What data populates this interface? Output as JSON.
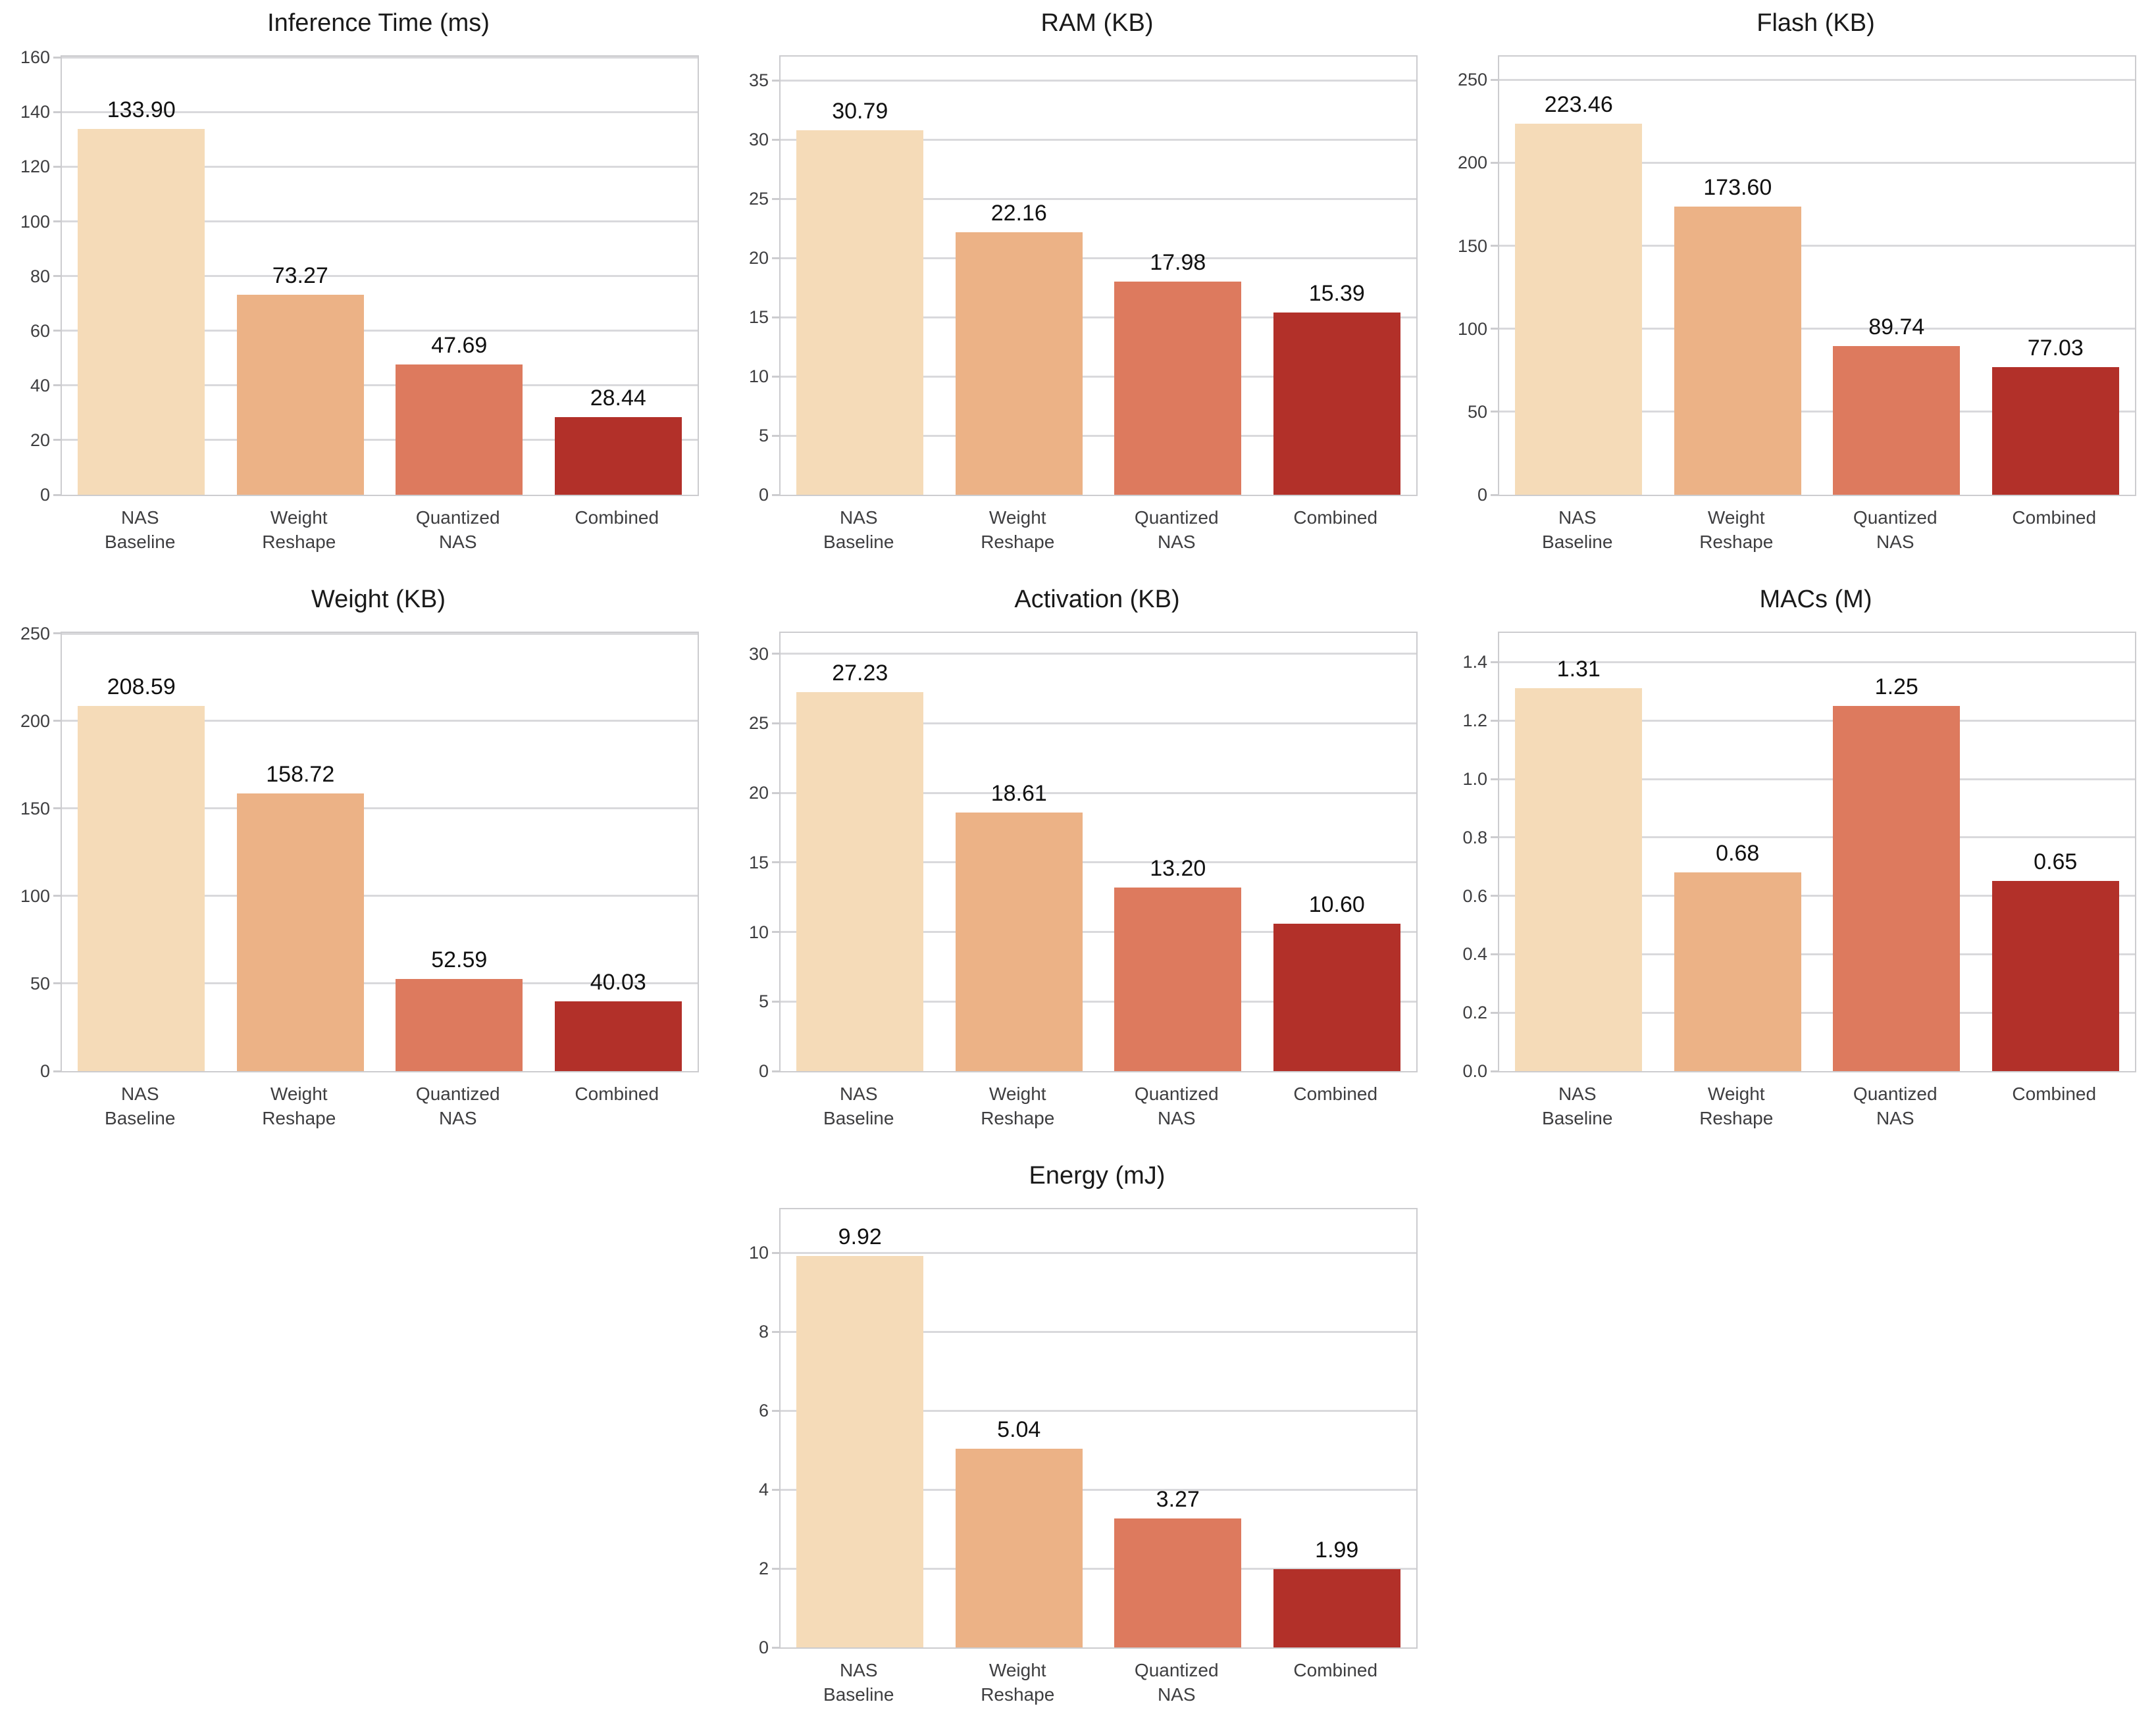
{
  "figure": {
    "background": "#ffffff",
    "bar_colors": [
      "#f5dbb8",
      "#ecb286",
      "#dd7a5e",
      "#b23029"
    ],
    "grid_color": "#d9d9dc",
    "spine_color": "#cccccf",
    "tick_label_color": "#3e3e40",
    "value_label_color": "#111111",
    "title_color": "#1a1a1a",
    "categories": [
      "NAS Baseline",
      "Weight Reshape",
      "Quantized NAS",
      "Combined"
    ],
    "category_lines": [
      [
        "NAS",
        "Baseline"
      ],
      [
        "Weight",
        "Reshape"
      ],
      [
        "Quantized",
        "NAS"
      ],
      [
        "Combined"
      ]
    ]
  },
  "chart_data": [
    {
      "type": "bar",
      "slug": "inference-time",
      "title": "Inference Time (ms)",
      "categories": [
        "NAS Baseline",
        "Weight Reshape",
        "Quantized NAS",
        "Combined"
      ],
      "values": [
        133.9,
        73.27,
        47.69,
        28.44
      ],
      "value_labels": [
        "133.90",
        "73.27",
        "47.69",
        "28.44"
      ],
      "yticks": [
        0,
        20,
        40,
        60,
        80,
        100,
        120,
        140,
        160
      ],
      "ytick_labels": [
        "0",
        "20",
        "40",
        "60",
        "80",
        "100",
        "120",
        "140",
        "160"
      ],
      "ylim": [
        0,
        160.3
      ],
      "grid": true,
      "legend": false,
      "position": {
        "row": 1,
        "col": 1
      }
    },
    {
      "type": "bar",
      "slug": "ram",
      "title": "RAM (KB)",
      "categories": [
        "NAS Baseline",
        "Weight Reshape",
        "Quantized NAS",
        "Combined"
      ],
      "values": [
        30.79,
        22.16,
        17.98,
        15.39
      ],
      "value_labels": [
        "30.79",
        "22.16",
        "17.98",
        "15.39"
      ],
      "yticks": [
        0,
        5,
        10,
        15,
        20,
        25,
        30,
        35
      ],
      "ytick_labels": [
        "0",
        "5",
        "10",
        "15",
        "20",
        "25",
        "30",
        "35"
      ],
      "ylim": [
        0,
        37.0
      ],
      "grid": true,
      "legend": false,
      "position": {
        "row": 1,
        "col": 2
      }
    },
    {
      "type": "bar",
      "slug": "flash",
      "title": "Flash (KB)",
      "categories": [
        "NAS Baseline",
        "Weight Reshape",
        "Quantized NAS",
        "Combined"
      ],
      "values": [
        223.46,
        173.6,
        89.74,
        77.03
      ],
      "value_labels": [
        "223.46",
        "173.60",
        "89.74",
        "77.03"
      ],
      "yticks": [
        0,
        50,
        100,
        150,
        200,
        250
      ],
      "ytick_labels": [
        "0",
        "50",
        "100",
        "150",
        "200",
        "250"
      ],
      "ylim": [
        0,
        264
      ],
      "grid": true,
      "legend": false,
      "position": {
        "row": 1,
        "col": 3
      }
    },
    {
      "type": "bar",
      "slug": "weight",
      "title": "Weight (KB)",
      "categories": [
        "NAS Baseline",
        "Weight Reshape",
        "Quantized NAS",
        "Combined"
      ],
      "values": [
        208.59,
        158.72,
        52.59,
        40.03
      ],
      "value_labels": [
        "208.59",
        "158.72",
        "52.59",
        "40.03"
      ],
      "yticks": [
        0,
        50,
        100,
        150,
        200,
        250
      ],
      "ytick_labels": [
        "0",
        "50",
        "100",
        "150",
        "200",
        "250"
      ],
      "ylim": [
        0,
        250.3
      ],
      "grid": true,
      "legend": false,
      "position": {
        "row": 2,
        "col": 1
      }
    },
    {
      "type": "bar",
      "slug": "activation",
      "title": "Activation (KB)",
      "categories": [
        "NAS Baseline",
        "Weight Reshape",
        "Quantized NAS",
        "Combined"
      ],
      "values": [
        27.23,
        18.61,
        13.2,
        10.6
      ],
      "value_labels": [
        "27.23",
        "18.61",
        "13.20",
        "10.60"
      ],
      "yticks": [
        0,
        5,
        10,
        15,
        20,
        25,
        30
      ],
      "ytick_labels": [
        "0",
        "5",
        "10",
        "15",
        "20",
        "25",
        "30"
      ],
      "ylim": [
        0,
        31.5
      ],
      "grid": true,
      "legend": false,
      "position": {
        "row": 2,
        "col": 2
      }
    },
    {
      "type": "bar",
      "slug": "macs",
      "title": "MACs (M)",
      "categories": [
        "NAS Baseline",
        "Weight Reshape",
        "Quantized NAS",
        "Combined"
      ],
      "values": [
        1.31,
        0.68,
        1.25,
        0.65
      ],
      "value_labels": [
        "1.31",
        "0.68",
        "1.25",
        "0.65"
      ],
      "yticks": [
        0.0,
        0.2,
        0.4,
        0.6,
        0.8,
        1.0,
        1.2,
        1.4
      ],
      "ytick_labels": [
        "0.0",
        "0.2",
        "0.4",
        "0.6",
        "0.8",
        "1.0",
        "1.2",
        "1.4"
      ],
      "ylim": [
        0,
        1.5
      ],
      "grid": true,
      "legend": false,
      "position": {
        "row": 2,
        "col": 3
      }
    },
    {
      "type": "bar",
      "slug": "energy",
      "title": "Energy (mJ)",
      "categories": [
        "NAS Baseline",
        "Weight Reshape",
        "Quantized NAS",
        "Combined"
      ],
      "values": [
        9.92,
        5.04,
        3.27,
        1.99
      ],
      "value_labels": [
        "9.92",
        "5.04",
        "3.27",
        "1.99"
      ],
      "yticks": [
        0,
        2,
        4,
        6,
        8,
        10
      ],
      "ytick_labels": [
        "0",
        "2",
        "4",
        "6",
        "8",
        "10"
      ],
      "ylim": [
        0,
        11.1
      ],
      "grid": true,
      "legend": false,
      "position": {
        "row": 3,
        "col": 2
      }
    }
  ]
}
